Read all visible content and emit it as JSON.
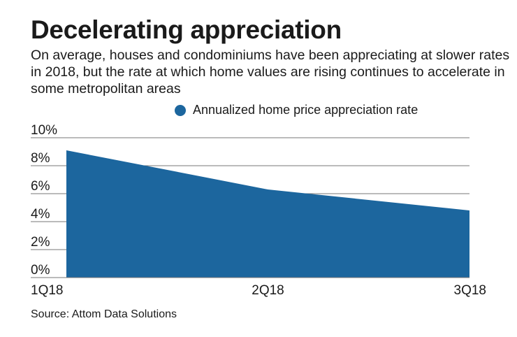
{
  "title": "Decelerating appreciation",
  "subtitle": "On average, houses and condominiums have been appreciating at slower rates in 2018, but the rate at which home values are rising continues to accelerate in some metropolitan areas",
  "source": "Source: Attom Data Solutions",
  "chart_data": {
    "type": "area",
    "categories": [
      "1Q18",
      "2Q18",
      "3Q18"
    ],
    "series": [
      {
        "name": "Annualized home price appreciation rate",
        "values": [
          9.1,
          6.3,
          4.8
        ],
        "color": "#1c669e"
      }
    ],
    "ylim": [
      0,
      10
    ],
    "yticks": [
      "0%",
      "2%",
      "4%",
      "6%",
      "8%",
      "10%"
    ],
    "grid": true,
    "legend": "top-right"
  }
}
